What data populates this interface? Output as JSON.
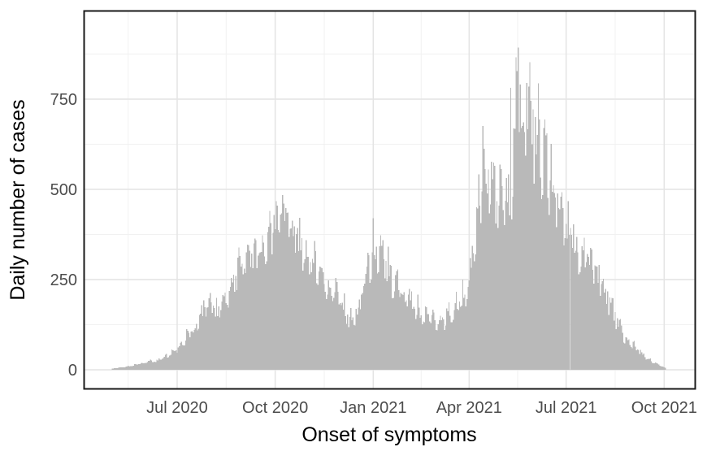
{
  "chart_data": {
    "type": "bar",
    "subtype": "histogram-epicurve",
    "title": "",
    "xlabel": "Onset of symptoms",
    "ylabel": "Daily number of cases",
    "x_tick_labels": [
      "Jul 2020",
      "Oct 2020",
      "Jan 2021",
      "Apr 2021",
      "Jul 2021",
      "Oct 2021"
    ],
    "y_tick_labels": [
      "0",
      "250",
      "500",
      "750"
    ],
    "y_major_values": [
      0,
      250,
      500,
      750
    ],
    "y_minor_values": [
      125,
      375,
      625,
      875
    ],
    "x_unit": "days since first bar (first bar = 1 May 2020)",
    "x_major_days": [
      61,
      153,
      245,
      335,
      426,
      518
    ],
    "x_minor_days": [
      15,
      107,
      199,
      290,
      380.5,
      472
    ],
    "n_days": 520,
    "ylim_panel": [
      -50,
      995
    ],
    "grid": "major+minor",
    "legend": "none",
    "envelope_anchors": [
      [
        0,
        3
      ],
      [
        10,
        7
      ],
      [
        20,
        12
      ],
      [
        31,
        20
      ],
      [
        41,
        25
      ],
      [
        49,
        35
      ],
      [
        61,
        60
      ],
      [
        70,
        90
      ],
      [
        80,
        130
      ],
      [
        87,
        170
      ],
      [
        92,
        185
      ],
      [
        99,
        155
      ],
      [
        110,
        215
      ],
      [
        116,
        265
      ],
      [
        123,
        295
      ],
      [
        130,
        320
      ],
      [
        142,
        355
      ],
      [
        151,
        400
      ],
      [
        160,
        430
      ],
      [
        167,
        415
      ],
      [
        175,
        360
      ],
      [
        184,
        305
      ],
      [
        199,
        250
      ],
      [
        214,
        195
      ],
      [
        223,
        135
      ],
      [
        228,
        150
      ],
      [
        233,
        190
      ],
      [
        240,
        280
      ],
      [
        245,
        345
      ],
      [
        250,
        330
      ],
      [
        256,
        300
      ],
      [
        264,
        255
      ],
      [
        274,
        215
      ],
      [
        284,
        180
      ],
      [
        294,
        150
      ],
      [
        307,
        125
      ],
      [
        313,
        150
      ],
      [
        325,
        180
      ],
      [
        335,
        230
      ],
      [
        340,
        380
      ],
      [
        345,
        470
      ],
      [
        348,
        560
      ],
      [
        351,
        545
      ],
      [
        357,
        505
      ],
      [
        363,
        480
      ],
      [
        368,
        450
      ],
      [
        374,
        490
      ],
      [
        378,
        680
      ],
      [
        381,
        830
      ],
      [
        384,
        740
      ],
      [
        389,
        700
      ],
      [
        396,
        650
      ],
      [
        401,
        620
      ],
      [
        406,
        580
      ],
      [
        412,
        545
      ],
      [
        418,
        450
      ],
      [
        426,
        405
      ],
      [
        435,
        350
      ],
      [
        443,
        310
      ],
      [
        451,
        285
      ],
      [
        459,
        235
      ],
      [
        466,
        200
      ],
      [
        473,
        140
      ],
      [
        480,
        95
      ],
      [
        488,
        72
      ],
      [
        495,
        50
      ],
      [
        503,
        30
      ],
      [
        511,
        16
      ],
      [
        519,
        5
      ]
    ],
    "outlier_spikes": [
      [
        160,
        484
      ],
      [
        245,
        420
      ],
      [
        348,
        676
      ],
      [
        374,
        782
      ],
      [
        381,
        893
      ],
      [
        389,
        795
      ],
      [
        397,
        700
      ],
      [
        401,
        694
      ],
      [
        412,
        626
      ],
      [
        418,
        489
      ]
    ],
    "noise": {
      "seed": 20210517,
      "weekly_amp": 0.1,
      "weekly_phase": 1.0,
      "jitter_amp": 0.16
    },
    "colors": {
      "bar_fill": "#b9b9b9",
      "grid_major": "#e4e4e4",
      "grid_minor": "#f1f1f1",
      "panel_border": "#1a1a1a",
      "axis_text": "#4c4c4c",
      "axis_title": "#000000",
      "background": "#ffffff"
    }
  }
}
